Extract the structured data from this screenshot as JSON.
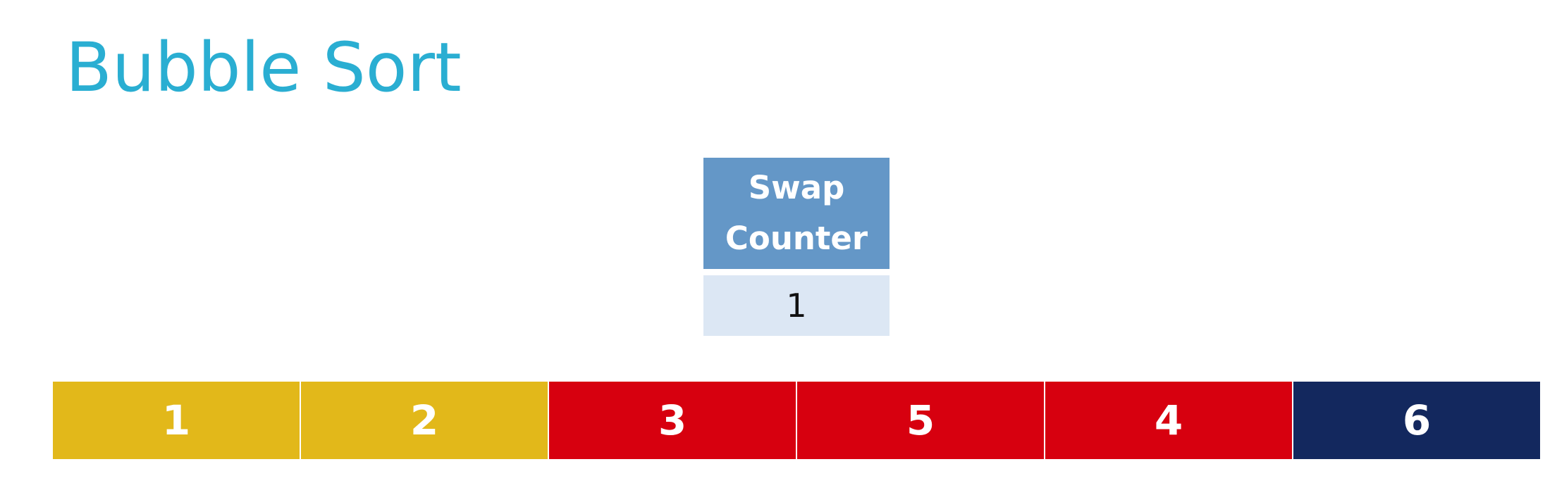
{
  "title": "Bubble Sort",
  "swap_counter": {
    "label": "Swap Counter",
    "value": "1"
  },
  "array": {
    "cells": [
      {
        "value": "1",
        "state": "sorted-start",
        "color": "#e2b81a"
      },
      {
        "value": "2",
        "state": "sorted-start",
        "color": "#e2b81a"
      },
      {
        "value": "3",
        "state": "unsorted",
        "color": "#d7000f"
      },
      {
        "value": "5",
        "state": "unsorted",
        "color": "#d7000f"
      },
      {
        "value": "4",
        "state": "unsorted",
        "color": "#d7000f"
      },
      {
        "value": "6",
        "state": "sorted-end",
        "color": "#13285e"
      }
    ]
  },
  "colors": {
    "title": "#2aaed2",
    "counter_header": "#6497c7",
    "counter_value_bg": "#dce7f4"
  }
}
